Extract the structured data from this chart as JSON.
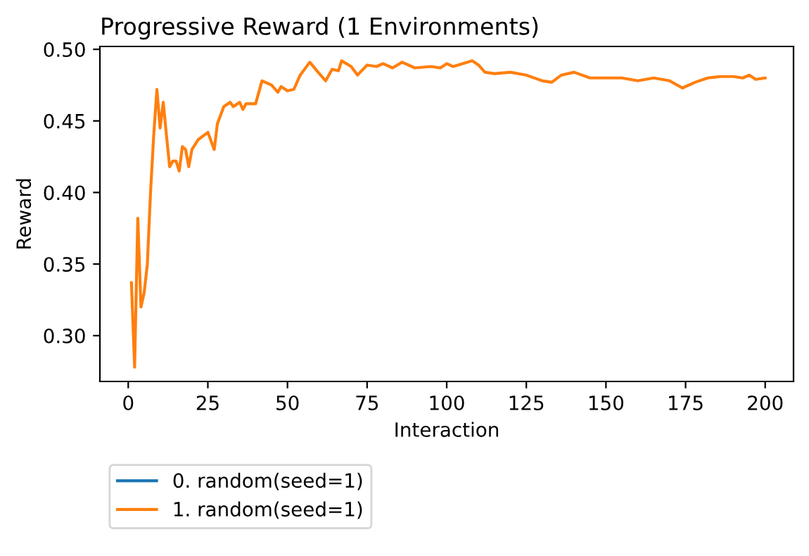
{
  "chart_data": {
    "type": "line",
    "title": "Progressive Reward (1 Environments)",
    "xlabel": "Interaction",
    "ylabel": "Reward",
    "xlim": [
      -8.9,
      208.9
    ],
    "xticks": [
      0,
      25,
      50,
      75,
      100,
      125,
      150,
      175,
      200
    ],
    "ylim": [
      0.268,
      0.502
    ],
    "yticks": [
      {
        "value": 0.3,
        "label": "0.30"
      },
      0.35,
      {
        "value": 0.4,
        "label": "0.40"
      },
      0.45,
      {
        "value": 0.5,
        "label": "0.50"
      }
    ],
    "legend": "bottom left",
    "grid": false,
    "x": [
      1,
      2,
      3,
      4,
      5,
      6,
      7,
      8,
      9,
      10,
      11,
      12,
      13,
      14,
      15,
      16,
      17,
      18,
      19,
      20,
      22,
      25,
      27,
      28,
      30,
      32,
      33,
      35,
      36,
      37,
      40,
      42,
      45,
      47,
      48,
      50,
      52,
      54,
      57,
      60,
      62,
      64,
      66,
      67,
      70,
      72,
      75,
      78,
      80,
      83,
      86,
      90,
      95,
      98,
      100,
      102,
      105,
      108,
      110,
      112,
      115,
      120,
      125,
      130,
      133,
      136,
      140,
      145,
      150,
      155,
      160,
      165,
      170,
      174,
      178,
      182,
      186,
      190,
      193,
      195,
      197,
      200
    ],
    "series": [
      {
        "name": "0. random(seed=1)",
        "color": "#1f77b4",
        "values": [
          null,
          null,
          null,
          null,
          null,
          null,
          null,
          null,
          null,
          null,
          null,
          null,
          null,
          null,
          null,
          null,
          null,
          null,
          null,
          null,
          null,
          null,
          null,
          null,
          null,
          null,
          null,
          null,
          null,
          null,
          null,
          null,
          null,
          null,
          null,
          null,
          null,
          null,
          null,
          null,
          null,
          null,
          null,
          null,
          null,
          null,
          null,
          null,
          null,
          null,
          null,
          null,
          null,
          null,
          null,
          null,
          null,
          null,
          null,
          null,
          null,
          null,
          null,
          null,
          null,
          null,
          null,
          null,
          null,
          null,
          null,
          null,
          null,
          null,
          null,
          null,
          null,
          null,
          null,
          null,
          null,
          null
        ]
      },
      {
        "name": "1. random(seed=1)",
        "color": "#ff7f0e",
        "values": [
          0.337,
          0.278,
          0.382,
          0.32,
          0.33,
          0.35,
          0.4,
          0.44,
          0.472,
          0.445,
          0.463,
          0.44,
          0.418,
          0.422,
          0.422,
          0.415,
          0.432,
          0.43,
          0.418,
          0.43,
          0.437,
          0.442,
          0.43,
          0.448,
          0.46,
          0.463,
          0.46,
          0.463,
          0.458,
          0.462,
          0.462,
          0.478,
          0.475,
          0.47,
          0.474,
          0.471,
          0.472,
          0.482,
          0.491,
          0.483,
          0.478,
          0.486,
          0.485,
          0.492,
          0.488,
          0.482,
          0.489,
          0.488,
          0.49,
          0.487,
          0.491,
          0.487,
          0.488,
          0.487,
          0.49,
          0.488,
          0.49,
          0.492,
          0.489,
          0.484,
          0.483,
          0.484,
          0.482,
          0.478,
          0.477,
          0.482,
          0.484,
          0.48,
          0.48,
          0.48,
          0.478,
          0.48,
          0.478,
          0.473,
          0.477,
          0.48,
          0.481,
          0.481,
          0.48,
          0.482,
          0.479,
          0.48
        ]
      }
    ]
  }
}
